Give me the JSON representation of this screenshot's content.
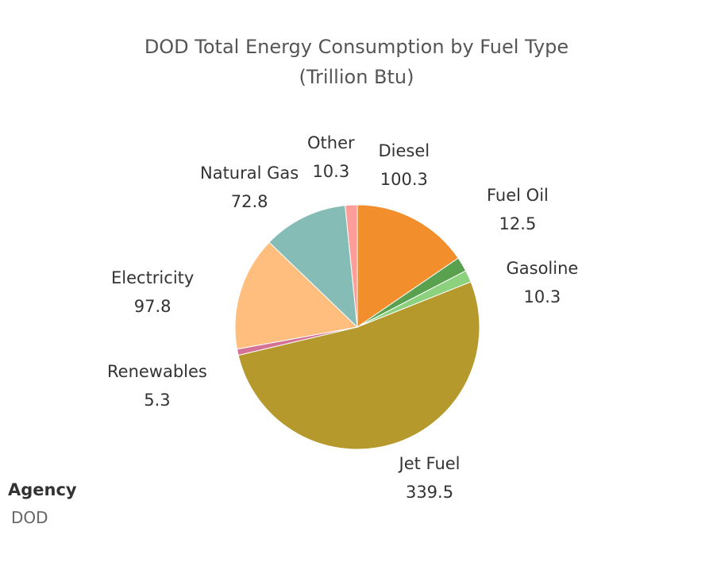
{
  "chart_data": {
    "type": "pie",
    "title": "DOD Total Energy Consumption by Fuel Type",
    "subtitle": "(Trillion Btu)",
    "start_angle_deg": 0,
    "direction": "clockwise",
    "slices": [
      {
        "name": "Diesel",
        "value": 100.3,
        "value_label": "100.3",
        "color": "#f28e2b"
      },
      {
        "name": "Fuel Oil",
        "value": 12.5,
        "value_label": "12.5",
        "color": "#59a14f"
      },
      {
        "name": "Gasoline",
        "value": 10.3,
        "value_label": "10.3",
        "color": "#8cd17d"
      },
      {
        "name": "Jet Fuel",
        "value": 339.5,
        "value_label": "339.5",
        "color": "#b6992d"
      },
      {
        "name": "Renewables",
        "value": 5.3,
        "value_label": "5.3",
        "color": "#d37295"
      },
      {
        "name": "Electricity",
        "value": 97.8,
        "value_label": "97.8",
        "color": "#ffbe7d"
      },
      {
        "name": "Natural Gas",
        "value": 72.8,
        "value_label": "72.8",
        "color": "#86bcb6"
      },
      {
        "name": "Other",
        "value": 10.3,
        "value_label": "10.3",
        "color": "#ff9d9a"
      }
    ]
  },
  "filter": {
    "title": "Agency",
    "value": "DOD"
  }
}
